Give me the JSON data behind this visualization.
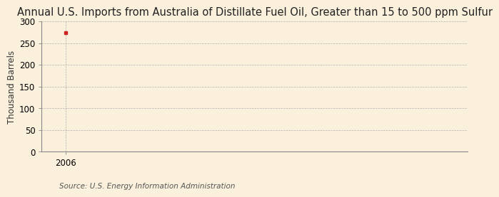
{
  "title": "Annual U.S. Imports from Australia of Distillate Fuel Oil, Greater than 15 to 500 ppm Sulfur",
  "ylabel": "Thousand Barrels",
  "source_text": "Source: U.S. Energy Information Administration",
  "x_data": [
    2006
  ],
  "y_data": [
    274
  ],
  "xlim": [
    2005.4,
    2016
  ],
  "ylim": [
    0,
    300
  ],
  "yticks": [
    0,
    50,
    100,
    150,
    200,
    250,
    300
  ],
  "xticks": [
    2006
  ],
  "background_color": "#faf0dc",
  "plot_bg_color": "#faf0dc",
  "data_color": "#cc2222",
  "grid_color": "#aaaaaa",
  "vline_color": "#aaaaaa",
  "title_fontsize": 10.5,
  "label_fontsize": 8.5,
  "tick_fontsize": 8.5,
  "source_fontsize": 7.5
}
